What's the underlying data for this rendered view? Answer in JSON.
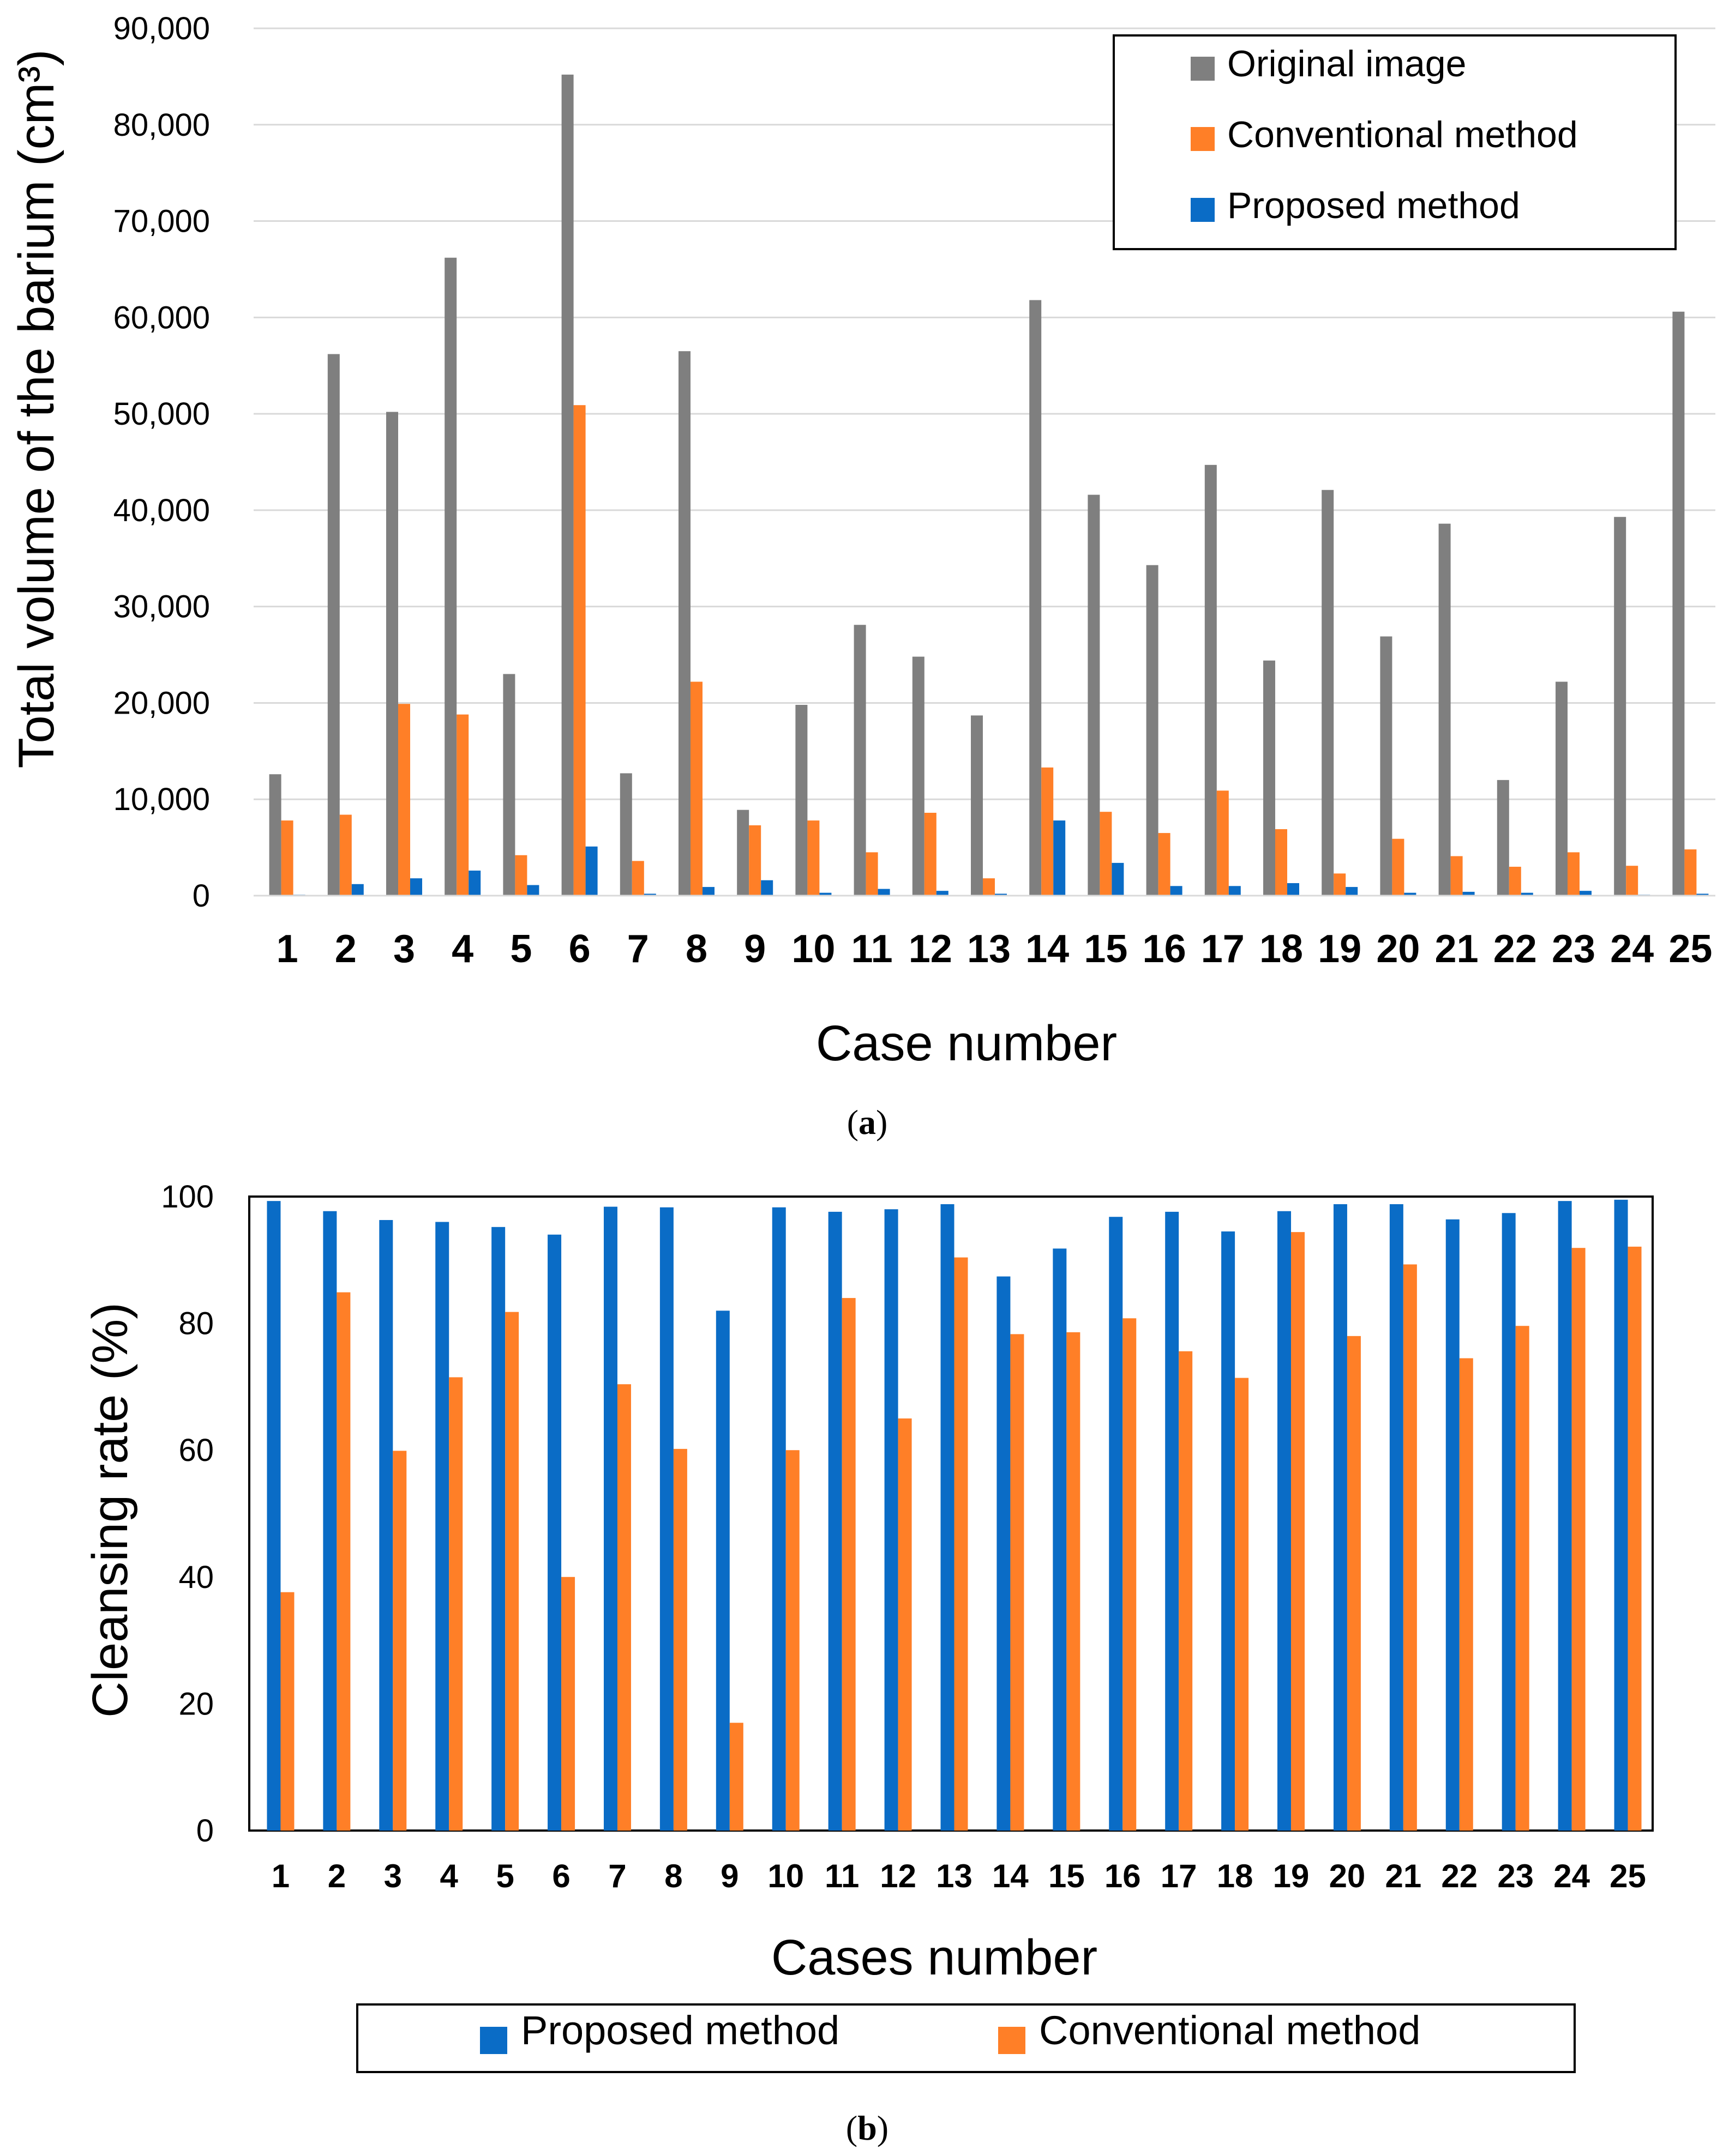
{
  "panel_labels": {
    "a": "a",
    "b": "b"
  },
  "colors": {
    "original": "#7f7f7f",
    "conventional": "#ff7f27",
    "proposed": "#0a6cc6",
    "grid": "#d9d9d9",
    "axis": "#000000"
  },
  "chart_data": [
    {
      "type": "bar",
      "xlabel": "Case number",
      "ylabel": "Total volume of the barium (cm³)",
      "ylim": [
        0,
        90000
      ],
      "yticks": [
        0,
        10000,
        20000,
        30000,
        40000,
        50000,
        60000,
        70000,
        80000,
        90000
      ],
      "ytick_labels": [
        "0",
        "10,000",
        "20,000",
        "30,000",
        "40,000",
        "50,000",
        "60,000",
        "70,000",
        "80,000",
        "90,000"
      ],
      "grid": true,
      "legend_position": "top-right",
      "categories": [
        "1",
        "2",
        "3",
        "4",
        "5",
        "6",
        "7",
        "8",
        "9",
        "10",
        "11",
        "12",
        "13",
        "14",
        "15",
        "16",
        "17",
        "18",
        "19",
        "20",
        "21",
        "22",
        "23",
        "24",
        "25"
      ],
      "series": [
        {
          "name": "Original image",
          "color": "#7f7f7f",
          "values": [
            12600,
            56200,
            50200,
            66200,
            23000,
            85200,
            12700,
            56500,
            8900,
            19800,
            28100,
            24800,
            18700,
            61800,
            41600,
            34300,
            44700,
            24400,
            42100,
            26900,
            38600,
            12000,
            22200,
            39300,
            60600
          ]
        },
        {
          "name": "Conventional method",
          "color": "#ff7f27",
          "values": [
            7800,
            8400,
            19900,
            18800,
            4200,
            50900,
            3600,
            22200,
            7300,
            7800,
            4500,
            8600,
            1800,
            13300,
            8700,
            6500,
            10900,
            6900,
            2300,
            5900,
            4100,
            3000,
            4500,
            3100,
            4800
          ]
        },
        {
          "name": "Proposed method",
          "color": "#0a6cc6",
          "values": [
            100,
            1200,
            1800,
            2600,
            1100,
            5100,
            200,
            900,
            1600,
            300,
            700,
            500,
            200,
            7800,
            3400,
            1000,
            1000,
            1300,
            900,
            300,
            400,
            300,
            500,
            100,
            200
          ]
        }
      ]
    },
    {
      "type": "bar",
      "xlabel": "Cases number",
      "ylabel": "Cleansing rate  (%)",
      "ylim": [
        0,
        100
      ],
      "yticks": [
        0,
        20,
        40,
        60,
        80,
        100
      ],
      "ytick_labels": [
        "0",
        "20",
        "40",
        "60",
        "80",
        "100"
      ],
      "grid": false,
      "legend_position": "bottom",
      "categories": [
        "1",
        "2",
        "3",
        "4",
        "5",
        "6",
        "7",
        "8",
        "9",
        "10",
        "11",
        "12",
        "13",
        "14",
        "15",
        "16",
        "17",
        "18",
        "19",
        "20",
        "21",
        "22",
        "23",
        "24",
        "25"
      ],
      "series": [
        {
          "name": "Proposed method",
          "color": "#0a6cc6",
          "values": [
            99.3,
            97.7,
            96.3,
            96.0,
            95.2,
            94.0,
            98.4,
            98.3,
            82.0,
            98.3,
            97.6,
            98.0,
            98.8,
            87.4,
            91.8,
            96.8,
            97.6,
            94.5,
            97.7,
            98.8,
            98.8,
            96.4,
            97.4,
            99.3,
            99.5
          ]
        },
        {
          "name": "Conventional method",
          "color": "#ff7f27",
          "values": [
            37.6,
            84.9,
            59.9,
            71.5,
            81.8,
            40.0,
            70.4,
            60.2,
            17.0,
            60.0,
            84.0,
            65.0,
            90.4,
            78.3,
            78.6,
            80.8,
            75.6,
            71.4,
            94.4,
            78.0,
            89.3,
            74.5,
            79.6,
            91.9,
            92.1
          ]
        }
      ]
    }
  ]
}
